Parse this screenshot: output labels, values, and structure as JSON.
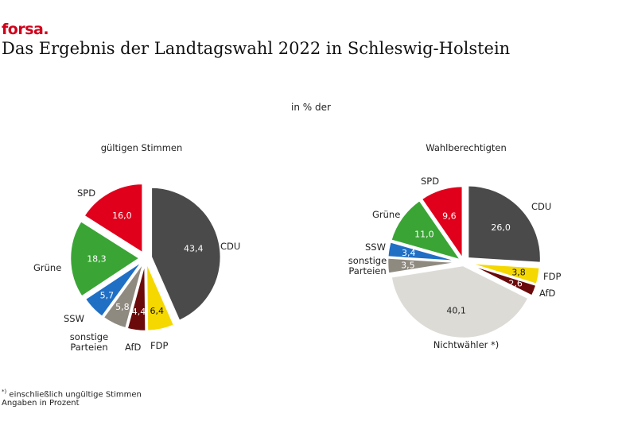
{
  "brand": "forsa.",
  "title": "Das Ergebnis der Landtagswahl 2022 in Schleswig-Holstein",
  "subtitle": "in % der",
  "footnote": {
    "line1_sup": "*)",
    "line1": " einschließlich ungültige Stimmen",
    "line2": "Angaben in Prozent"
  },
  "chart_data": [
    {
      "type": "pie",
      "title": "gültigen Stimmen",
      "slices": [
        {
          "label": "CDU",
          "value": 43.4,
          "value_text": "43,4",
          "color": "#4a4a4a",
          "text_color": "#ffffff"
        },
        {
          "label": "FDP",
          "value": 6.4,
          "value_text": "6,4",
          "color": "#f5d800",
          "text_color": "#111111"
        },
        {
          "label": "AfD",
          "value": 4.4,
          "value_text": "4,4",
          "color": "#6b0a0a",
          "text_color": "#ffffff"
        },
        {
          "label": "sonstige Parteien",
          "value": 5.8,
          "value_text": "5,8",
          "color": "#8f8a80",
          "text_color": "#ffffff"
        },
        {
          "label": "SSW",
          "value": 5.7,
          "value_text": "5,7",
          "color": "#1f6fc5",
          "text_color": "#ffffff"
        },
        {
          "label": "Grüne",
          "value": 18.3,
          "value_text": "18,3",
          "color": "#3aa535",
          "text_color": "#ffffff"
        },
        {
          "label": "SPD",
          "value": 16.0,
          "value_text": "16,0",
          "color": "#e0001b",
          "text_color": "#ffffff"
        }
      ]
    },
    {
      "type": "pie",
      "title": "Wahlberechtigten",
      "slices": [
        {
          "label": "CDU",
          "value": 26.0,
          "value_text": "26,0",
          "color": "#4a4a4a",
          "text_color": "#ffffff"
        },
        {
          "label": "FDP",
          "value": 3.8,
          "value_text": "3,8",
          "color": "#f5d800",
          "text_color": "#111111"
        },
        {
          "label": "AfD",
          "value": 2.6,
          "value_text": "2,6",
          "color": "#6b0a0a",
          "text_color": "#ffffff"
        },
        {
          "label": "Nichtwähler *)",
          "value": 40.1,
          "value_text": "40,1",
          "color": "#dcdbd6",
          "text_color": "#222222"
        },
        {
          "label": "sonstige Parteien",
          "value": 3.5,
          "value_text": "3,5",
          "color": "#8f8a80",
          "text_color": "#ffffff"
        },
        {
          "label": "SSW",
          "value": 3.4,
          "value_text": "3,4",
          "color": "#1f6fc5",
          "text_color": "#ffffff"
        },
        {
          "label": "Grüne",
          "value": 11.0,
          "value_text": "11,0",
          "color": "#3aa535",
          "text_color": "#ffffff"
        },
        {
          "label": "SPD",
          "value": 9.6,
          "value_text": "9,6",
          "color": "#e0001b",
          "text_color": "#ffffff"
        }
      ]
    }
  ]
}
